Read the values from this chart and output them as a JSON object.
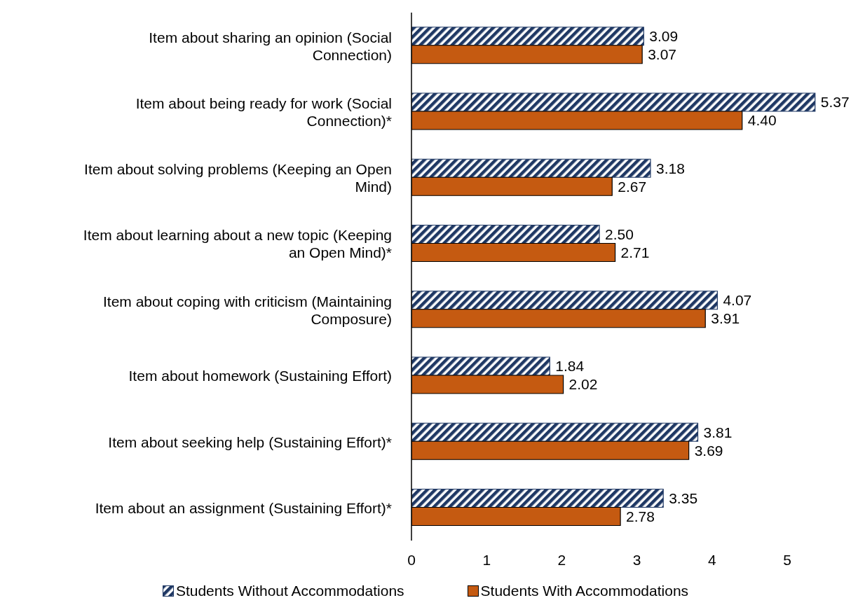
{
  "chart_data": {
    "type": "bar",
    "orientation": "horizontal",
    "categories": [
      "Item about sharing an opinion (Social Connection)",
      "Item about being ready for work (Social Connection)*",
      "Item about solving problems (Keeping an Open Mind)",
      "Item about learning about a new topic (Keeping an Open Mind)*",
      "Item about coping with criticism (Maintaining Composure)",
      "Item about homework (Sustaining Effort)",
      "Item about seeking help (Sustaining Effort)*",
      "Item about an assignment (Sustaining Effort)*"
    ],
    "series": [
      {
        "name": "Students Without Accommodations",
        "color": "#1f3864",
        "values": [
          3.09,
          5.37,
          3.18,
          2.5,
          4.07,
          1.84,
          3.81,
          3.35
        ],
        "value_labels": [
          "3.09",
          "5.37",
          "3.18",
          "2.50",
          "4.07",
          "1.84",
          "3.81",
          "3.35"
        ]
      },
      {
        "name": "Students With Accommodations",
        "color": "#c55a11",
        "values": [
          3.07,
          4.4,
          2.67,
          2.71,
          3.91,
          2.02,
          3.69,
          2.78
        ],
        "value_labels": [
          "3.07",
          "4.40",
          "2.67",
          "2.71",
          "3.91",
          "2.02",
          "3.69",
          "2.78"
        ]
      }
    ],
    "xlim": [
      0,
      5.4
    ],
    "xticks": [
      0,
      1,
      2,
      3,
      4,
      5
    ],
    "grid": false,
    "legend": "bottom"
  }
}
